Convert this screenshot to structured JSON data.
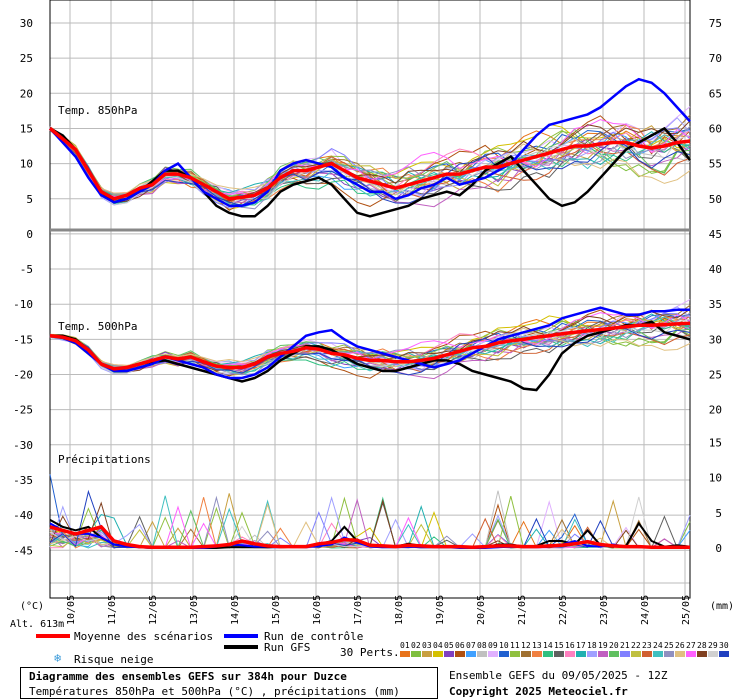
{
  "panels": {
    "temp850": {
      "title": "Temp. 850hPa"
    },
    "temp500": {
      "title": "Temp. 500hPa"
    },
    "precip": {
      "title": "Précipitations"
    }
  },
  "axes": {
    "left_unit": "(°C)",
    "right_unit": "(mm)",
    "altitude": "Alt. 613m"
  },
  "legend": {
    "mean_label": "Moyenne des scénarios",
    "mean_color": "#ff0000",
    "control_label": "Run de contrôle",
    "control_color": "#0000ff",
    "gfs_label": "Run GFS",
    "gfs_color": "#000000",
    "snow_label": "Risque neige",
    "snow_icon": "snowflake-icon",
    "perts_label": "30 Perts.",
    "pert_numbers": [
      "01",
      "02",
      "03",
      "04",
      "05",
      "06",
      "07",
      "08",
      "09",
      "10",
      "11",
      "12",
      "13",
      "14",
      "15",
      "16",
      "17",
      "18",
      "19",
      "20",
      "21",
      "22",
      "23",
      "24",
      "25",
      "26",
      "27",
      "28",
      "29",
      "30"
    ],
    "pert_colors": [
      "#e8731a",
      "#7fbf3f",
      "#c8a040",
      "#d4c000",
      "#8040c0",
      "#b05010",
      "#40a0ff",
      "#c0c0c0",
      "#e0b0ff",
      "#2060d0",
      "#90c040",
      "#a07030",
      "#f08040",
      "#30c080",
      "#606060",
      "#ff80c0",
      "#20b0b0",
      "#a0a0ff",
      "#c060c0",
      "#60c060",
      "#8080ff",
      "#c0c040",
      "#d06030",
      "#40c0c0",
      "#9090c0",
      "#e0c080",
      "#ff60ff",
      "#804020",
      "#d0d0d0",
      "#2040c0"
    ]
  },
  "info": {
    "title": "Diagramme des ensembles GEFS sur 384h pour Duzce",
    "subtitle": "Températures 850hPa et 500hPa (°C) , précipitations (mm)",
    "run": "Ensemble GEFS du 09/05/2025 - 12Z",
    "copyright": "Copyright 2025 Meteociel.fr"
  },
  "chart_data": {
    "type": "line",
    "x_ticks": [
      "10/05",
      "11/05",
      "12/05",
      "13/05",
      "14/05",
      "15/05",
      "16/05",
      "17/05",
      "18/05",
      "19/05",
      "20/05",
      "21/05",
      "22/05",
      "23/05",
      "24/05",
      "25/05"
    ],
    "x_hours_range": [
      0,
      384
    ],
    "left_axis": {
      "ticks": [
        30,
        25,
        20,
        15,
        10,
        5,
        0,
        -5,
        -10,
        -15,
        -20,
        -25,
        -30,
        -35,
        -40,
        -45
      ],
      "range": [
        -45,
        30
      ]
    },
    "right_axis_850": {
      "ticks": [
        75,
        70,
        65,
        60,
        55,
        50,
        45
      ],
      "range": [
        45,
        75
      ]
    },
    "right_axis_500": {
      "ticks": [
        40,
        35,
        30,
        25,
        20
      ],
      "range": [
        15,
        45
      ]
    },
    "right_axis_precip": {
      "ticks": [
        15,
        10,
        5,
        0
      ],
      "range": [
        0,
        20
      ]
    },
    "temp850": {
      "mean": [
        15,
        13.5,
        12,
        9,
        6,
        5,
        5.5,
        6.5,
        7,
        8.5,
        8.5,
        8,
        7,
        6,
        5,
        5.2,
        5.5,
        6.5,
        8,
        9,
        9,
        9.5,
        10,
        9,
        8,
        7.5,
        7,
        6.5,
        7,
        7.5,
        8,
        8.5,
        8.5,
        9,
        9.5,
        9.5,
        10,
        10.5,
        11,
        11.5,
        12,
        12.5,
        12.5,
        12.8,
        13,
        13,
        12.5,
        12.2,
        12.5,
        13,
        13.2
      ],
      "control": [
        15,
        13,
        11,
        8,
        5.5,
        4.5,
        5,
        6,
        7,
        9,
        10,
        8,
        6,
        5,
        4,
        4,
        4.5,
        6,
        9,
        10,
        10.5,
        10,
        9.5,
        8,
        7,
        6,
        6,
        5,
        5.5,
        6.5,
        7,
        8,
        7,
        7.5,
        8,
        9,
        10,
        12,
        14,
        15.5,
        16,
        16.5,
        17,
        18,
        19.5,
        21,
        22,
        21.5,
        20,
        18,
        16
      ],
      "gfs": [
        15,
        14,
        12,
        9,
        6,
        4.5,
        5,
        6,
        7.5,
        9,
        9,
        8,
        6,
        4,
        3,
        2.5,
        2.5,
        4,
        6,
        7,
        7.5,
        8,
        7,
        5,
        3,
        2.5,
        3,
        3.5,
        4,
        5,
        5.5,
        6,
        5.5,
        7,
        9,
        10,
        11,
        9,
        7,
        5,
        4,
        4.5,
        6,
        8,
        10,
        12,
        13,
        14,
        15,
        13,
        10.5
      ]
    },
    "temp500": {
      "mean": [
        30.5,
        30.3,
        29.8,
        28.5,
        26.5,
        25.8,
        26,
        26.5,
        27,
        27.5,
        27.2,
        27.5,
        26.8,
        26.2,
        26,
        26,
        26.5,
        27.5,
        28,
        28.3,
        28.8,
        28.6,
        28,
        27.8,
        27.3,
        27,
        27,
        26.8,
        26.8,
        27,
        27.3,
        27.8,
        28.3,
        28.8,
        29,
        29.5,
        29.8,
        30,
        30.3,
        30.5,
        30.8,
        31,
        31.2,
        31.4,
        31.6,
        31.8,
        32,
        32,
        32.1,
        32.2,
        32.3
      ],
      "control": [
        30.5,
        30.2,
        29.5,
        28,
        26.5,
        25.5,
        25.5,
        26,
        26.5,
        27.5,
        27,
        26.5,
        26,
        25,
        24.5,
        24.5,
        25,
        26,
        27.5,
        29,
        30.5,
        31,
        31.3,
        30,
        29,
        28.5,
        28,
        27.5,
        27,
        26.5,
        26,
        26.5,
        27,
        28,
        29,
        30,
        30.5,
        31,
        31.5,
        32,
        33,
        33.5,
        34,
        34.5,
        34,
        33.5,
        33.5,
        34,
        34,
        34.2,
        34.2
      ],
      "gfs": [
        30.5,
        30.5,
        30,
        28.5,
        26.5,
        25.8,
        26,
        26.5,
        26.8,
        27,
        26.5,
        26,
        25.5,
        25,
        24.5,
        24,
        24.5,
        25.5,
        27,
        28,
        29,
        29,
        28.5,
        27.5,
        26.5,
        26,
        25.5,
        25.5,
        26,
        26.5,
        27,
        27,
        26.5,
        25.5,
        25,
        24.5,
        24,
        23,
        22.8,
        25,
        28,
        29.5,
        30.5,
        31,
        31.5,
        32,
        32,
        32.5,
        31,
        30.5,
        30
      ]
    },
    "precip": {
      "mean": [
        3,
        2.5,
        2,
        2.5,
        3,
        1,
        0.5,
        0.2,
        0.1,
        0.1,
        0.1,
        0.1,
        0.2,
        0.3,
        0.5,
        1,
        0.6,
        0.3,
        0.2,
        0.2,
        0.2,
        0.6,
        0.8,
        1.2,
        1.1,
        0.4,
        0.3,
        0.2,
        0.4,
        0.3,
        0.2,
        0.2,
        0.2,
        0.1,
        0.2,
        0.3,
        0.3,
        0.2,
        0.2,
        0.3,
        0.4,
        0.6,
        0.9,
        0.5,
        0.3,
        0.2,
        0.2,
        0.1,
        0.1,
        0.1,
        0.1
      ],
      "control": [
        3.5,
        2.5,
        2,
        2,
        1.5,
        0.5,
        0.2,
        0.1,
        0,
        0,
        0,
        0,
        0,
        0.2,
        0.5,
        0.4,
        0.2,
        0.2,
        0.3,
        0.2,
        0.1,
        0.3,
        0.5,
        1.5,
        0.8,
        0.2,
        0.1,
        0.1,
        0.2,
        0.1,
        0.1,
        0.1,
        0,
        0,
        0,
        0.1,
        0.2,
        0.1,
        0.1,
        0.2,
        0.5,
        1,
        0.3,
        0.2,
        0.5,
        0.2,
        0.1,
        0.1,
        0.2,
        0.1,
        0
      ],
      "gfs": [
        4,
        3,
        2.5,
        3,
        1.5,
        0.5,
        0.3,
        0.1,
        0,
        0,
        0,
        0,
        0,
        0,
        0.1,
        0.1,
        0.1,
        0.1,
        0.2,
        0.2,
        0.3,
        0.5,
        1,
        3,
        1,
        0.3,
        0.2,
        0.2,
        0.6,
        0.3,
        0.1,
        0.1,
        0.1,
        0.1,
        0.1,
        0.5,
        0.5,
        0.2,
        0.3,
        1,
        1,
        0.5,
        2.5,
        0.4,
        0.2,
        0.3,
        3.5,
        1,
        0.2,
        0.4,
        0.2
      ]
    }
  }
}
